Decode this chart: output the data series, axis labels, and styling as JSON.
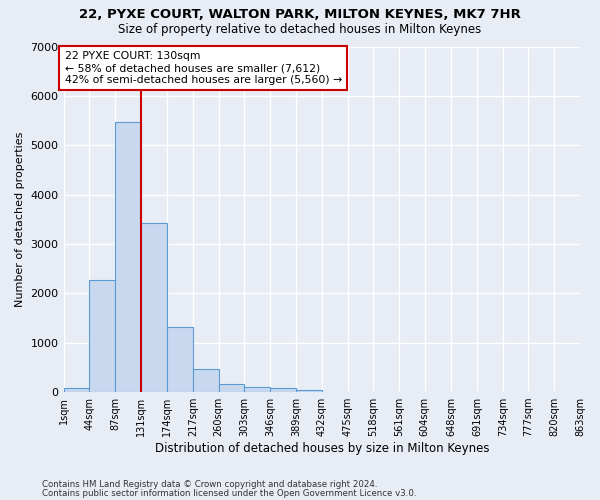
{
  "title": "22, PYXE COURT, WALTON PARK, MILTON KEYNES, MK7 7HR",
  "subtitle": "Size of property relative to detached houses in Milton Keynes",
  "xlabel": "Distribution of detached houses by size in Milton Keynes",
  "ylabel": "Number of detached properties",
  "footnote1": "Contains HM Land Registry data © Crown copyright and database right 2024.",
  "footnote2": "Contains public sector information licensed under the Open Government Licence v3.0.",
  "bar_color": "#c8d9ef",
  "bar_edge_color": "#5b9bd5",
  "background_color": "#e8edf5",
  "annotation_text": "22 PYXE COURT: 130sqm\n← 58% of detached houses are smaller (7,612)\n42% of semi-detached houses are larger (5,560) →",
  "vline_x": 131,
  "vline_color": "#cc0000",
  "annotation_box_color": "#cc0000",
  "bin_edges": [
    1,
    44,
    87,
    131,
    174,
    217,
    260,
    303,
    346,
    389,
    432,
    475,
    518,
    561,
    604,
    648,
    691,
    734,
    777,
    820,
    863
  ],
  "bin_values": [
    75,
    2280,
    5480,
    3430,
    1310,
    470,
    165,
    110,
    80,
    45,
    0,
    0,
    0,
    0,
    0,
    0,
    0,
    0,
    0,
    0
  ],
  "ylim": [
    0,
    7000
  ],
  "yticks": [
    0,
    1000,
    2000,
    3000,
    4000,
    5000,
    6000,
    7000
  ],
  "tick_labels": [
    "1sqm",
    "44sqm",
    "87sqm",
    "131sqm",
    "174sqm",
    "217sqm",
    "260sqm",
    "303sqm",
    "346sqm",
    "389sqm",
    "432sqm",
    "475sqm",
    "518sqm",
    "561sqm",
    "604sqm",
    "648sqm",
    "691sqm",
    "734sqm",
    "777sqm",
    "820sqm",
    "863sqm"
  ]
}
